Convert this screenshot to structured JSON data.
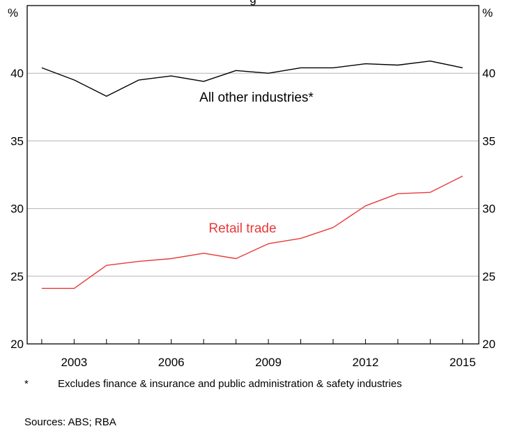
{
  "chart_data": {
    "type": "line",
    "title_fragment": "g",
    "unit_left": "%",
    "unit_right": "%",
    "x": [
      2002,
      2003,
      2004,
      2005,
      2006,
      2007,
      2008,
      2009,
      2010,
      2011,
      2012,
      2013,
      2014,
      2015
    ],
    "x_ticks": [
      "2003",
      "2006",
      "2009",
      "2012",
      "2015"
    ],
    "y_ticks": [
      "20",
      "25",
      "30",
      "35",
      "40"
    ],
    "ylim": [
      20,
      45
    ],
    "grid": true,
    "series": [
      {
        "name": "All other industries*",
        "color": "#000000",
        "values": [
          40.4,
          39.5,
          38.3,
          39.5,
          39.8,
          39.4,
          40.2,
          40.0,
          40.4,
          40.4,
          40.7,
          40.6,
          40.9,
          40.4
        ]
      },
      {
        "name": "Retail trade",
        "color": "#e8393a",
        "values": [
          24.1,
          24.1,
          25.8,
          26.1,
          26.3,
          26.7,
          26.3,
          27.4,
          27.8,
          28.6,
          30.2,
          31.1,
          31.2,
          32.4
        ]
      }
    ]
  },
  "footnote": {
    "marker": "*",
    "text": "Excludes finance & insurance and public administration & safety industries"
  },
  "sources": "Sources:  ABS; RBA"
}
